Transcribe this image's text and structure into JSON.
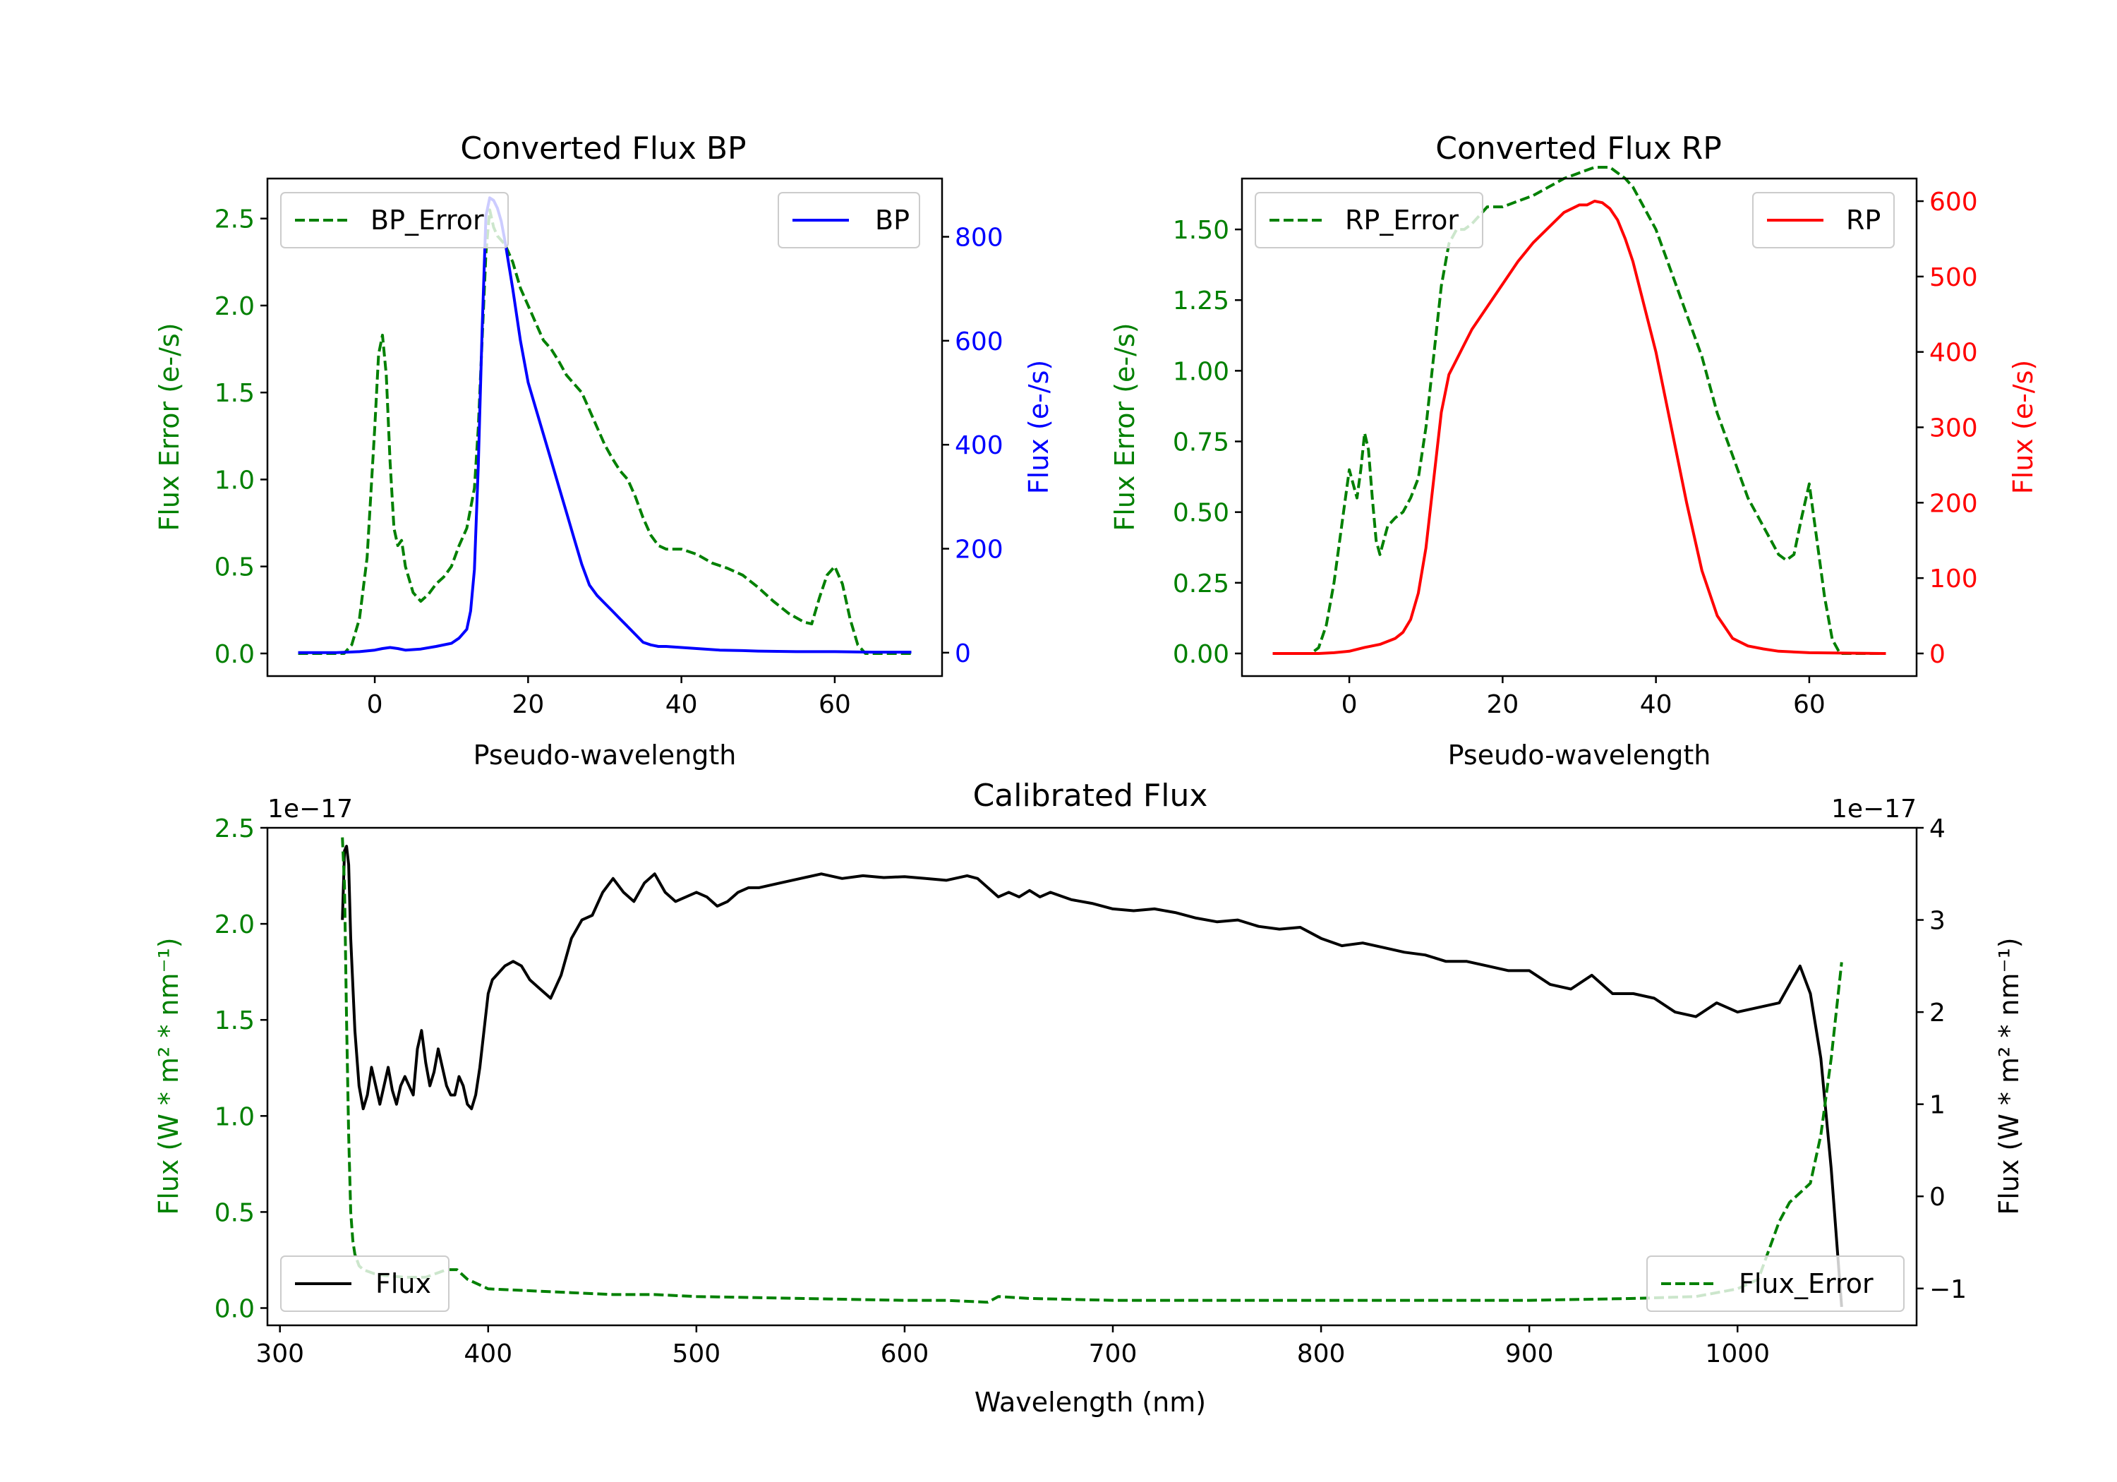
{
  "colors": {
    "error": "#008000",
    "bp": "#0000ff",
    "rp": "#ff0000",
    "flux": "#000000"
  },
  "chart_data": [
    {
      "type": "line",
      "title": "Converted Flux BP",
      "xlabel": "Pseudo-wavelength",
      "ylabel_left": "Flux Error (e-/s)",
      "ylabel_right": "Flux (e-/s)",
      "xlim": [
        -14,
        74
      ],
      "ylim_left": [
        -0.13,
        2.73
      ],
      "ylim_right": [
        -45,
        912
      ],
      "xticks": [
        0,
        20,
        40,
        60
      ],
      "yticks_left": [
        0.0,
        0.5,
        1.0,
        1.5,
        2.0,
        2.5
      ],
      "ytick_labels_left": [
        "0.0",
        "0.5",
        "1.0",
        "1.5",
        "2.0",
        "2.5"
      ],
      "yticks_right": [
        0,
        200,
        400,
        600,
        800
      ],
      "series": [
        {
          "name": "BP_Error",
          "axis": "left",
          "style": "dashed",
          "legend": "top-left",
          "x": [
            -10,
            -4,
            -3,
            -2,
            -1,
            0,
            0.5,
            1,
            1.5,
            2,
            2.5,
            3,
            3.5,
            4,
            5,
            6,
            7,
            8,
            9,
            10,
            11,
            12,
            13,
            13.5,
            14,
            14.5,
            15,
            15.5,
            16,
            17,
            18,
            19,
            20,
            21,
            22,
            23,
            24,
            25,
            26,
            27,
            28,
            29,
            30,
            31,
            32,
            33,
            34,
            35,
            36,
            37,
            38,
            40,
            42,
            44,
            46,
            48,
            50,
            52,
            54,
            56,
            57,
            58,
            59,
            60,
            61,
            62,
            63,
            64,
            70
          ],
          "values": [
            0,
            0,
            0.05,
            0.2,
            0.55,
            1.3,
            1.72,
            1.83,
            1.6,
            1.1,
            0.72,
            0.62,
            0.65,
            0.5,
            0.35,
            0.3,
            0.34,
            0.4,
            0.44,
            0.5,
            0.62,
            0.72,
            0.95,
            1.3,
            1.8,
            2.3,
            2.55,
            2.45,
            2.4,
            2.35,
            2.25,
            2.1,
            2.0,
            1.9,
            1.8,
            1.75,
            1.68,
            1.6,
            1.55,
            1.5,
            1.4,
            1.3,
            1.2,
            1.12,
            1.05,
            1.0,
            0.9,
            0.78,
            0.68,
            0.62,
            0.6,
            0.6,
            0.57,
            0.52,
            0.49,
            0.45,
            0.38,
            0.3,
            0.23,
            0.18,
            0.17,
            0.32,
            0.45,
            0.5,
            0.4,
            0.2,
            0.05,
            0,
            0
          ]
        },
        {
          "name": "BP",
          "axis": "right",
          "style": "solid",
          "legend": "top-right",
          "x": [
            -10,
            -5,
            -2,
            0,
            1,
            2,
            3,
            4,
            6,
            8,
            10,
            11,
            12,
            12.5,
            13,
            13.5,
            14,
            14.5,
            15,
            15.5,
            16,
            16.5,
            17,
            18,
            19,
            20,
            21,
            22,
            23,
            24,
            25,
            26,
            27,
            28,
            29,
            30,
            31,
            32,
            33,
            34,
            35,
            36,
            37,
            38,
            40,
            42,
            45,
            48,
            50,
            55,
            60,
            65,
            70
          ],
          "values": [
            0,
            0,
            2,
            5,
            8,
            10,
            8,
            5,
            7,
            12,
            18,
            28,
            45,
            80,
            160,
            360,
            620,
            840,
            875,
            870,
            855,
            830,
            790,
            700,
            600,
            520,
            470,
            420,
            370,
            320,
            270,
            220,
            170,
            130,
            110,
            95,
            80,
            65,
            50,
            35,
            20,
            15,
            12,
            12,
            10,
            8,
            5,
            4,
            3,
            2,
            2,
            1,
            1
          ]
        }
      ]
    },
    {
      "type": "line",
      "title": "Converted Flux RP",
      "xlabel": "Pseudo-wavelength",
      "ylabel_left": "Flux Error (e-/s)",
      "ylabel_right": "Flux (e-/s)",
      "xlim": [
        -14,
        74
      ],
      "ylim_left": [
        -0.08,
        1.68
      ],
      "ylim_right": [
        -30,
        630
      ],
      "xticks": [
        0,
        20,
        40,
        60
      ],
      "yticks_left": [
        0.0,
        0.25,
        0.5,
        0.75,
        1.0,
        1.25,
        1.5
      ],
      "ytick_labels_left": [
        "0.00",
        "0.25",
        "0.50",
        "0.75",
        "1.00",
        "1.25",
        "1.50"
      ],
      "yticks_right": [
        0,
        100,
        200,
        300,
        400,
        500,
        600
      ],
      "series": [
        {
          "name": "RP_Error",
          "axis": "left",
          "style": "dashed",
          "legend": "top-left",
          "x": [
            -10,
            -5,
            -4,
            -3,
            -2,
            -1,
            0,
            0.5,
            1,
            1.5,
            2,
            2.5,
            3,
            3.5,
            4,
            5,
            6,
            7,
            8,
            9,
            10,
            11,
            12,
            13,
            14,
            15,
            16,
            17,
            18,
            20,
            22,
            24,
            26,
            28,
            30,
            32,
            34,
            35,
            36,
            37,
            38,
            40,
            42,
            44,
            46,
            48,
            50,
            52,
            54,
            55,
            56,
            57,
            58,
            59,
            60,
            61,
            62,
            63,
            64,
            70
          ],
          "values": [
            0,
            0,
            0.02,
            0.1,
            0.25,
            0.45,
            0.65,
            0.6,
            0.55,
            0.65,
            0.78,
            0.72,
            0.55,
            0.4,
            0.35,
            0.45,
            0.48,
            0.5,
            0.55,
            0.62,
            0.8,
            1.05,
            1.3,
            1.45,
            1.5,
            1.5,
            1.52,
            1.55,
            1.58,
            1.58,
            1.6,
            1.62,
            1.65,
            1.68,
            1.7,
            1.72,
            1.72,
            1.7,
            1.68,
            1.65,
            1.6,
            1.5,
            1.35,
            1.2,
            1.05,
            0.85,
            0.7,
            0.55,
            0.45,
            0.4,
            0.35,
            0.33,
            0.35,
            0.48,
            0.6,
            0.4,
            0.2,
            0.05,
            0,
            0
          ]
        },
        {
          "name": "RP",
          "axis": "right",
          "style": "solid",
          "legend": "top-right",
          "x": [
            -10,
            -4,
            -2,
            0,
            2,
            4,
            6,
            7,
            8,
            9,
            10,
            11,
            12,
            13,
            13.5,
            14,
            15,
            16,
            17,
            18,
            20,
            22,
            24,
            26,
            28,
            30,
            31,
            32,
            33,
            34,
            35,
            36,
            37,
            38,
            40,
            42,
            44,
            46,
            48,
            50,
            52,
            54,
            56,
            60,
            70
          ],
          "values": [
            0,
            0,
            1,
            3,
            8,
            12,
            20,
            28,
            45,
            80,
            140,
            230,
            320,
            370,
            380,
            390,
            410,
            430,
            445,
            460,
            490,
            520,
            545,
            565,
            585,
            595,
            595,
            600,
            598,
            590,
            575,
            550,
            520,
            480,
            400,
            300,
            200,
            110,
            50,
            20,
            10,
            6,
            3,
            1,
            0
          ]
        }
      ]
    },
    {
      "type": "line",
      "title": "Calibrated Flux",
      "xlabel": "Wavelength (nm)",
      "ylabel_left": "Flux (W * m² * nm⁻¹)",
      "ylabel_right": "Flux (W * m² * nm⁻¹)",
      "scale_left": "1e−17",
      "scale_right": "1e−17",
      "xlim": [
        294,
        1086
      ],
      "ylim_left": [
        -0.09,
        2.5
      ],
      "ylim_right": [
        -1.4,
        4.0
      ],
      "xticks": [
        300,
        400,
        500,
        600,
        700,
        800,
        900,
        1000
      ],
      "yticks_left": [
        0.0,
        0.5,
        1.0,
        1.5,
        2.0,
        2.5
      ],
      "ytick_labels_left": [
        "0.0",
        "0.5",
        "1.0",
        "1.5",
        "2.0",
        "2.5"
      ],
      "yticks_right": [
        -1,
        0,
        1,
        2,
        3,
        4
      ],
      "ytick_labels_right": [
        "−1",
        "0",
        "1",
        "2",
        "3",
        "4"
      ],
      "series": [
        {
          "name": "Flux",
          "axis": "right",
          "style": "solid",
          "legend": "bottom-left",
          "x": [
            330,
            331,
            332,
            333,
            334,
            336,
            338,
            340,
            342,
            344,
            346,
            348,
            350,
            352,
            354,
            356,
            358,
            360,
            362,
            364,
            366,
            368,
            370,
            372,
            374,
            376,
            378,
            380,
            382,
            384,
            386,
            388,
            390,
            392,
            394,
            396,
            398,
            400,
            402,
            404,
            408,
            412,
            416,
            420,
            425,
            430,
            435,
            440,
            445,
            450,
            455,
            460,
            465,
            470,
            475,
            480,
            485,
            490,
            495,
            500,
            505,
            510,
            515,
            520,
            525,
            530,
            540,
            550,
            560,
            570,
            580,
            590,
            600,
            610,
            620,
            630,
            635,
            640,
            645,
            650,
            655,
            660,
            665,
            670,
            680,
            690,
            700,
            710,
            720,
            730,
            740,
            750,
            760,
            770,
            780,
            790,
            800,
            810,
            820,
            830,
            840,
            850,
            860,
            870,
            880,
            890,
            900,
            910,
            920,
            930,
            940,
            950,
            960,
            970,
            980,
            990,
            1000,
            1010,
            1020,
            1025,
            1030,
            1035,
            1040,
            1045,
            1050
          ],
          "values": [
            3.0,
            3.75,
            3.8,
            3.6,
            2.8,
            1.8,
            1.2,
            0.95,
            1.1,
            1.4,
            1.2,
            1.0,
            1.2,
            1.4,
            1.15,
            1.0,
            1.2,
            1.3,
            1.2,
            1.1,
            1.6,
            1.8,
            1.45,
            1.2,
            1.35,
            1.6,
            1.4,
            1.2,
            1.1,
            1.1,
            1.3,
            1.2,
            1.0,
            0.95,
            1.1,
            1.4,
            1.8,
            2.2,
            2.35,
            2.4,
            2.5,
            2.55,
            2.5,
            2.35,
            2.25,
            2.15,
            2.4,
            2.8,
            3.0,
            3.05,
            3.3,
            3.45,
            3.3,
            3.2,
            3.4,
            3.5,
            3.3,
            3.2,
            3.25,
            3.3,
            3.25,
            3.15,
            3.2,
            3.3,
            3.35,
            3.35,
            3.4,
            3.45,
            3.5,
            3.45,
            3.48,
            3.46,
            3.47,
            3.45,
            3.43,
            3.48,
            3.45,
            3.35,
            3.25,
            3.3,
            3.25,
            3.32,
            3.25,
            3.3,
            3.22,
            3.18,
            3.12,
            3.1,
            3.12,
            3.08,
            3.02,
            2.98,
            3.0,
            2.93,
            2.9,
            2.92,
            2.8,
            2.72,
            2.75,
            2.7,
            2.65,
            2.62,
            2.55,
            2.55,
            2.5,
            2.45,
            2.45,
            2.3,
            2.25,
            2.4,
            2.2,
            2.2,
            2.15,
            2.0,
            1.95,
            2.1,
            2.0,
            2.05,
            2.1,
            2.3,
            2.5,
            2.2,
            1.5,
            0.3,
            -1.2
          ]
        },
        {
          "name": "Flux_Error",
          "axis": "left",
          "style": "dashed",
          "legend": "bottom-right",
          "x": [
            330,
            331,
            332,
            333,
            334,
            335,
            336,
            337,
            338,
            340,
            345,
            350,
            360,
            370,
            375,
            380,
            385,
            390,
            400,
            420,
            440,
            460,
            480,
            500,
            550,
            600,
            620,
            640,
            645,
            660,
            700,
            800,
            900,
            950,
            980,
            1000,
            1010,
            1015,
            1020,
            1025,
            1030,
            1035,
            1040,
            1045,
            1050
          ],
          "values": [
            2.45,
            2.2,
            1.5,
            0.9,
            0.5,
            0.35,
            0.28,
            0.25,
            0.22,
            0.2,
            0.18,
            0.17,
            0.16,
            0.16,
            0.18,
            0.2,
            0.2,
            0.15,
            0.1,
            0.09,
            0.08,
            0.07,
            0.07,
            0.06,
            0.05,
            0.04,
            0.04,
            0.03,
            0.06,
            0.05,
            0.04,
            0.04,
            0.04,
            0.05,
            0.06,
            0.1,
            0.15,
            0.3,
            0.45,
            0.55,
            0.6,
            0.65,
            0.9,
            1.3,
            1.8
          ]
        }
      ]
    }
  ]
}
